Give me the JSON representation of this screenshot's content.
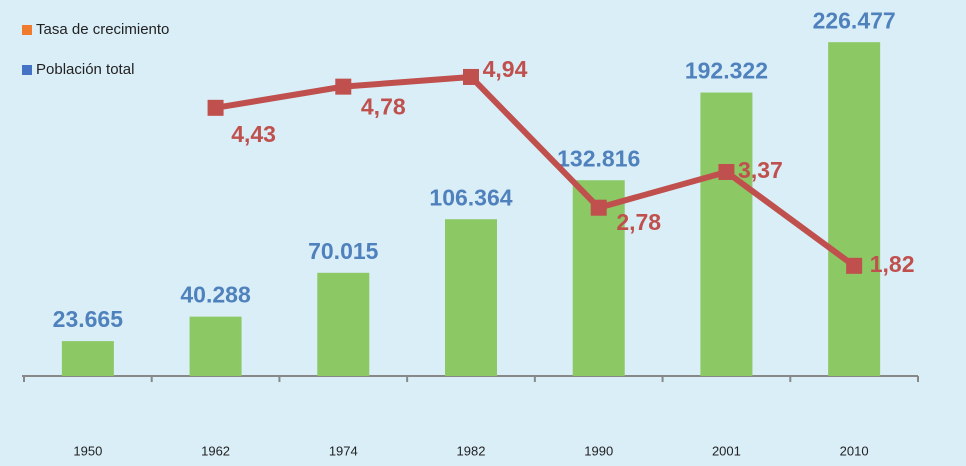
{
  "chart_data": {
    "type": "bar+line",
    "categories": [
      "1950",
      "1962",
      "1974",
      "1982",
      "1990",
      "2001",
      "2010"
    ],
    "series": [
      {
        "name": "Población total",
        "type": "bar",
        "color": "#8cc864",
        "label_color": "#4f81bd",
        "legend_color": "#4472c4",
        "values": [
          23665,
          40288,
          70015,
          106364,
          132816,
          192322,
          226477
        ],
        "value_labels": [
          "23.665",
          "40.288",
          "70.015",
          "106.364",
          "132.816",
          "192.322",
          "226.477"
        ]
      },
      {
        "name": "Tasa de crecimiento",
        "type": "line",
        "axis": "y2",
        "color": "#c0504d",
        "label_color": "#c0504d",
        "legend_color": "#f07b2d",
        "values": [
          null,
          4.43,
          4.78,
          4.94,
          2.78,
          3.37,
          1.82
        ],
        "value_labels": [
          null,
          "4,43",
          "4,78",
          "4,94",
          "2,78",
          "3,37",
          "1,82"
        ]
      }
    ],
    "ylim": [
      0,
      230000
    ],
    "y2lim": [
      0,
      5.6
    ],
    "grid": false
  }
}
